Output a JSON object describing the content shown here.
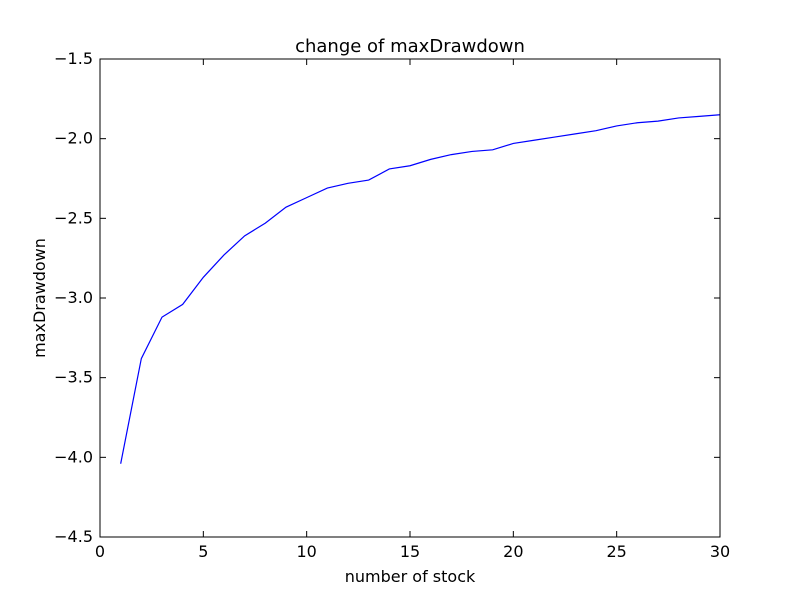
{
  "chart_data": {
    "type": "line",
    "title": "change of maxDrawdown",
    "xlabel": "number of stock",
    "ylabel": "maxDrawdown",
    "xlim": [
      0,
      30
    ],
    "ylim": [
      -4.5,
      -1.5
    ],
    "xticks": [
      "0",
      "5",
      "10",
      "15",
      "20",
      "25",
      "30"
    ],
    "yticks": [
      "−1.5",
      "−2.0",
      "−2.5",
      "−3.0",
      "−3.5",
      "−4.0",
      "−4.5"
    ],
    "grid": false,
    "series": [
      {
        "color": "#0000ff",
        "x": [
          1,
          2,
          3,
          4,
          5,
          6,
          7,
          8,
          9,
          10,
          11,
          12,
          13,
          14,
          15,
          16,
          17,
          18,
          19,
          20,
          21,
          22,
          23,
          24,
          25,
          26,
          27,
          28,
          29,
          30
        ],
        "y": [
          -4.04,
          -3.38,
          -3.12,
          -3.04,
          -2.87,
          -2.73,
          -2.61,
          -2.53,
          -2.43,
          -2.37,
          -2.31,
          -2.28,
          -2.26,
          -2.19,
          -2.17,
          -2.13,
          -2.1,
          -2.08,
          -2.07,
          -2.03,
          -2.01,
          -1.99,
          -1.97,
          -1.95,
          -1.92,
          -1.9,
          -1.89,
          -1.87,
          -1.86,
          -1.85
        ]
      }
    ]
  }
}
